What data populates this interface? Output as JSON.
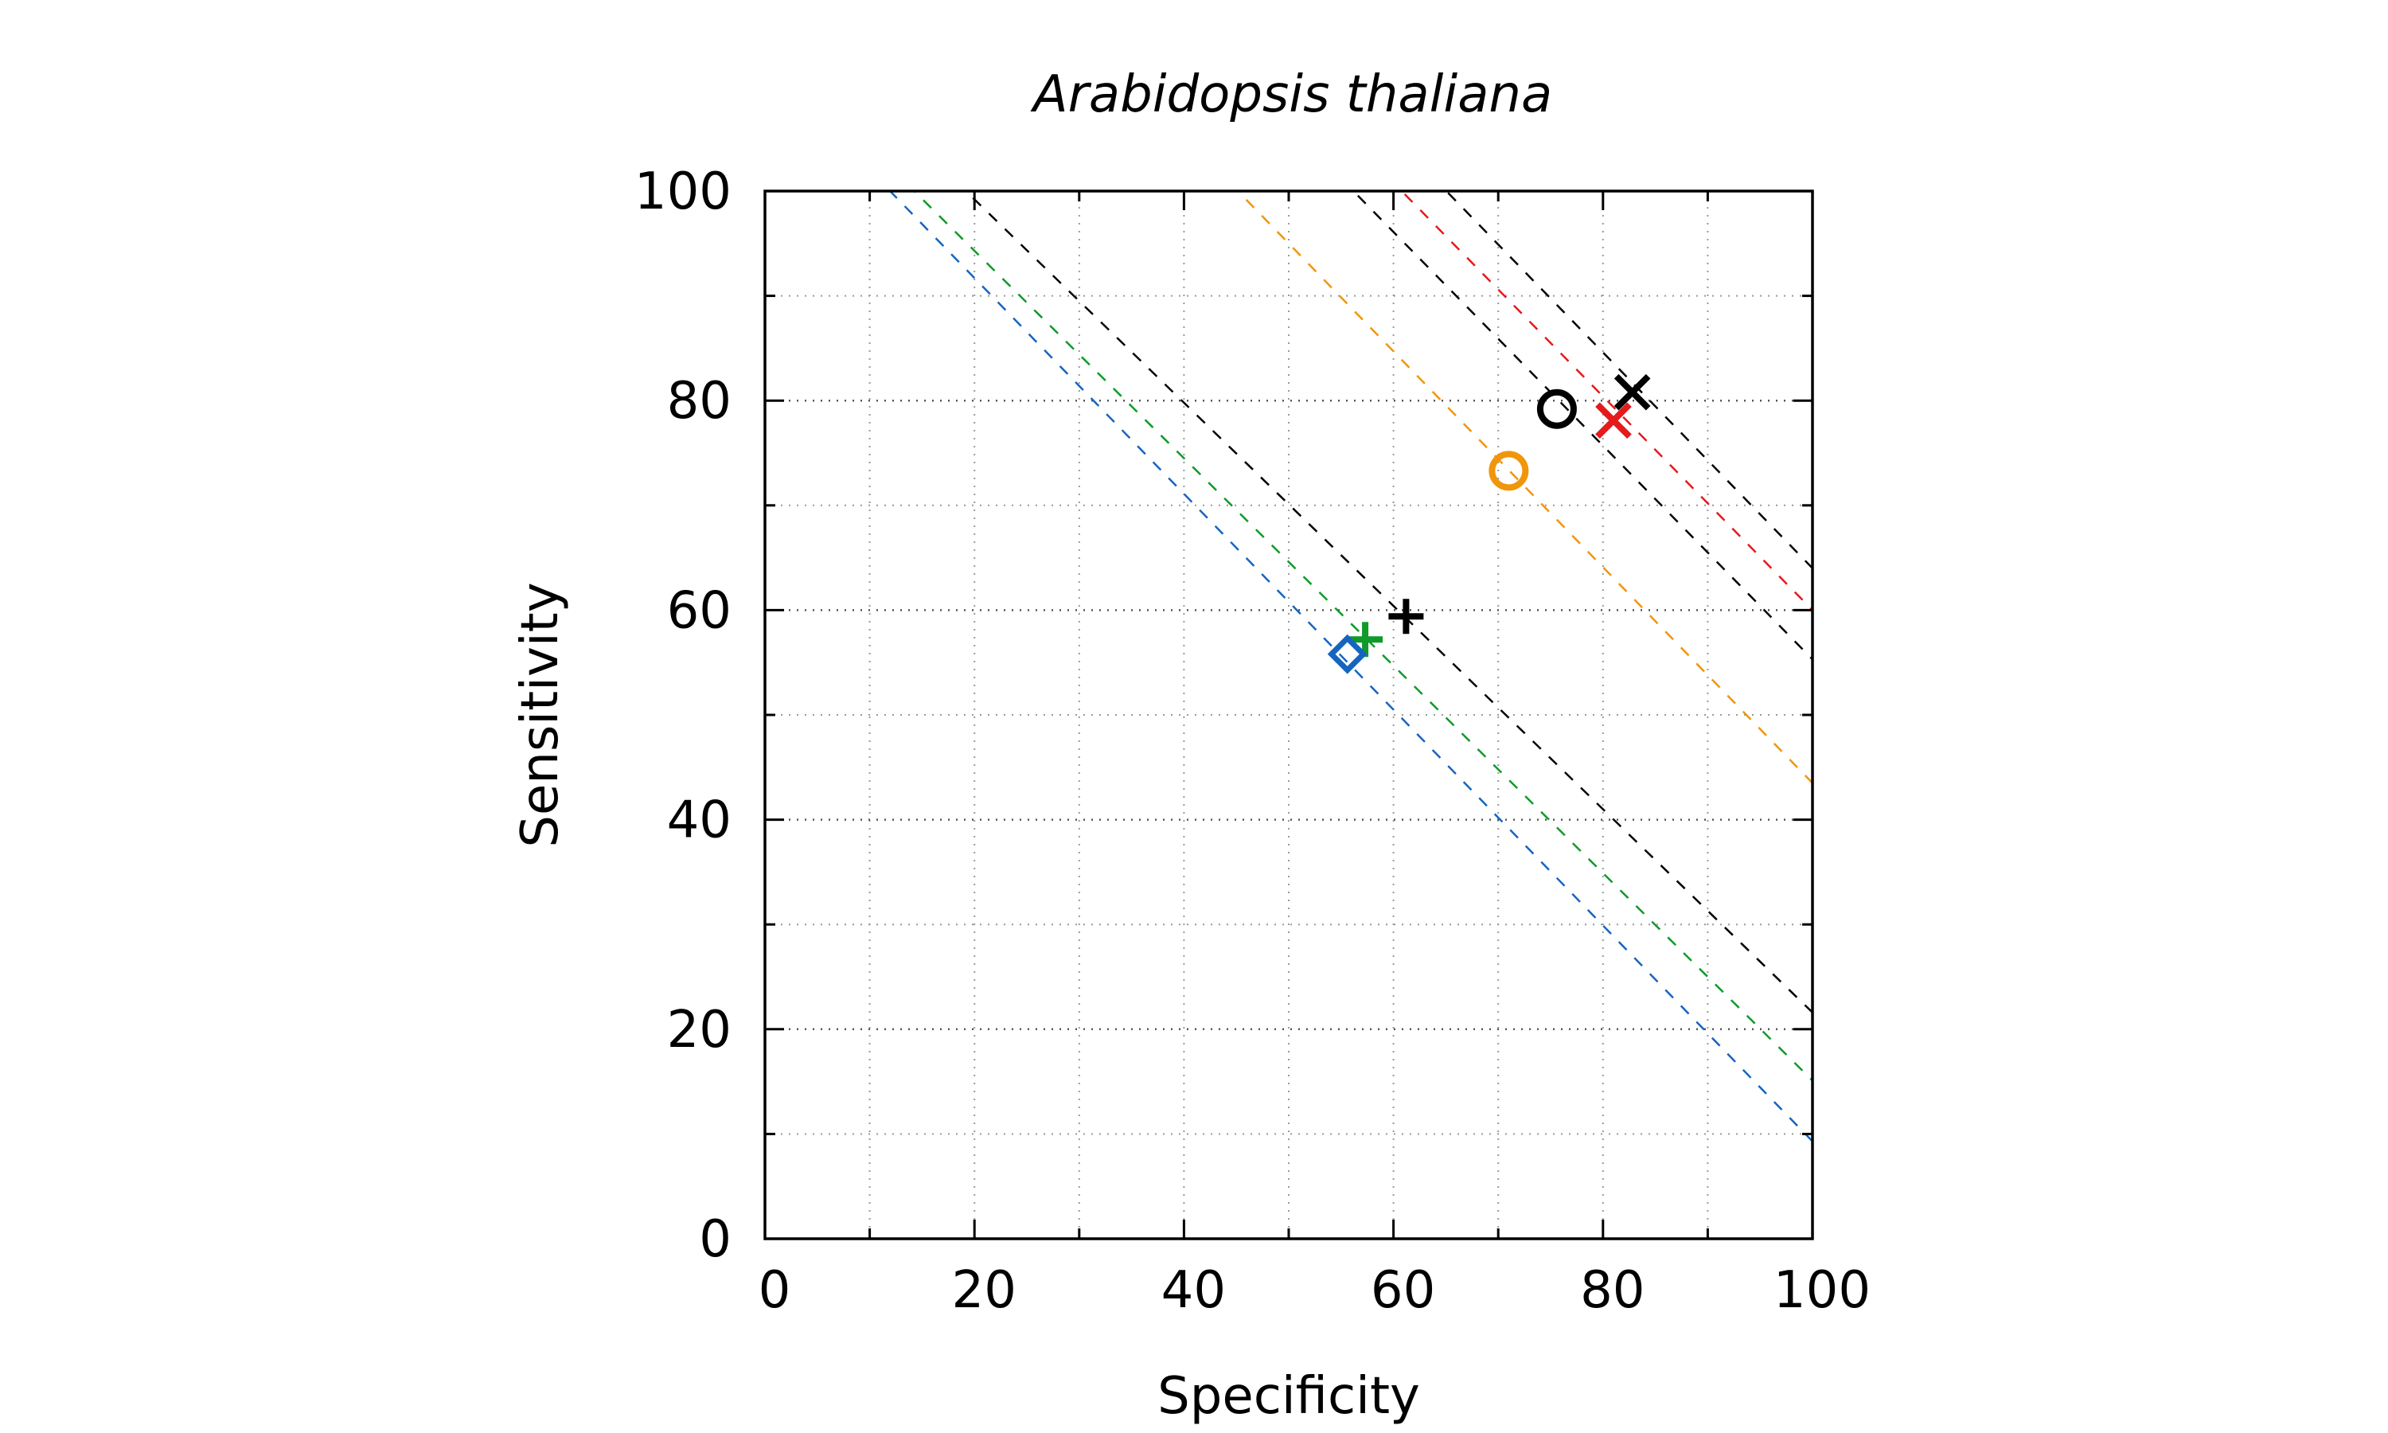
{
  "chart_data": {
    "type": "scatter",
    "title": "Arabidopsis thaliana",
    "xlabel": "Specificity",
    "ylabel": "Sensitivity",
    "xlim": [
      0,
      100
    ],
    "ylim": [
      0,
      100
    ],
    "xticks": [
      0,
      20,
      40,
      60,
      80,
      100
    ],
    "yticks": [
      0,
      20,
      40,
      60,
      80,
      100
    ],
    "minor_step": 10,
    "grid": true,
    "colors": {
      "black": "#000000",
      "red": "#e41a1c",
      "orange": "#f0960a",
      "green": "#0f9a2a",
      "blue": "#1565c0"
    },
    "points": [
      {
        "x": 61.2,
        "y": 59.4,
        "marker": "plus",
        "color": "#000000"
      },
      {
        "x": 57.3,
        "y": 57.2,
        "marker": "plus",
        "color": "#0f9a2a"
      },
      {
        "x": 55.6,
        "y": 55.8,
        "marker": "diamond",
        "color": "#1565c0"
      },
      {
        "x": 71.0,
        "y": 73.3,
        "marker": "circle",
        "color": "#f0960a"
      },
      {
        "x": 75.6,
        "y": 79.2,
        "marker": "circle",
        "color": "#000000"
      },
      {
        "x": 81.0,
        "y": 78.1,
        "marker": "x",
        "color": "#e41a1c"
      },
      {
        "x": 82.8,
        "y": 80.8,
        "marker": "x",
        "color": "#000000"
      }
    ],
    "reference_lines": [
      {
        "color": "#1565c0",
        "slope": -1.03,
        "intercept": 112.3
      },
      {
        "color": "#0f9a2a",
        "slope": -0.99,
        "intercept": 114.1
      },
      {
        "color": "#000000",
        "slope": -0.97,
        "intercept": 118.6
      },
      {
        "color": "#f0960a",
        "slope": -1.03,
        "intercept": 146.5
      },
      {
        "color": "#000000",
        "slope": -1.02,
        "intercept": 157.3
      },
      {
        "color": "#e41a1c",
        "slope": -1.02,
        "intercept": 162.0
      },
      {
        "color": "#000000",
        "slope": -1.03,
        "intercept": 167.0
      }
    ]
  }
}
